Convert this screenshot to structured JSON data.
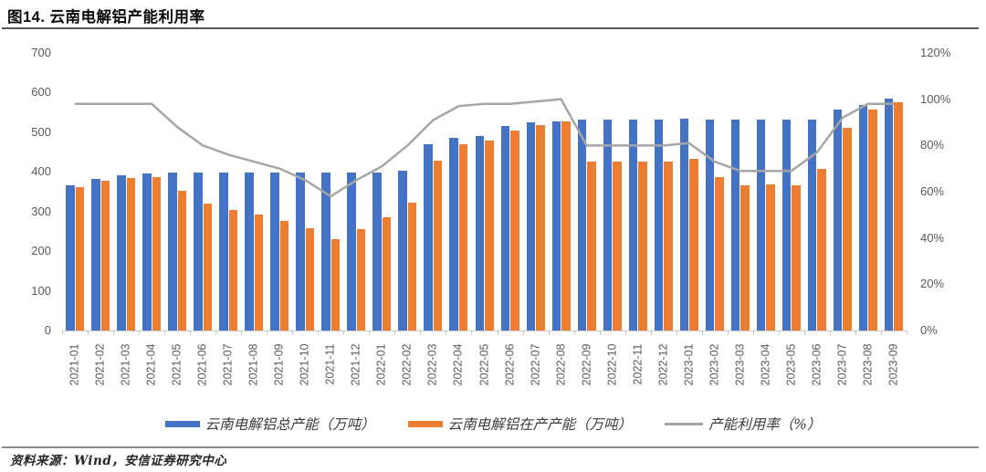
{
  "figure": {
    "title": "图14. 云南电解铝产能利用率",
    "source_note": "资料来源：Wind，安信证券研究中心"
  },
  "chart_data": {
    "type": "combo",
    "categories": [
      "2021-01",
      "2021-02",
      "2021-03",
      "2021-04",
      "2021-05",
      "2021-06",
      "2021-07",
      "2021-08",
      "2021-09",
      "2021-10",
      "2021-11",
      "2021-12",
      "2022-01",
      "2022-02",
      "2022-03",
      "2022-04",
      "2022-05",
      "2022-06",
      "2022-07",
      "2022-08",
      "2022-09",
      "2022-10",
      "2022-11",
      "2022-12",
      "2023-01",
      "2023-02",
      "2023-03",
      "2023-04",
      "2023-05",
      "2023-06",
      "2023-07",
      "2023-08",
      "2023-09"
    ],
    "series": [
      {
        "name": "云南电解铝总产能（万吨）",
        "type": "bar",
        "axis": "left",
        "color": "#4472C4",
        "values": [
          366,
          383,
          391,
          396,
          399,
          399,
          399,
          399,
          399,
          399,
          399,
          399,
          399,
          404,
          469,
          485,
          491,
          515,
          526,
          528,
          533,
          533,
          533,
          533,
          534,
          533,
          533,
          533,
          533,
          533,
          557,
          568,
          584
        ]
      },
      {
        "name": "云南电解铝在产产能（万吨）",
        "type": "bar",
        "axis": "left",
        "color": "#ED7D31",
        "values": [
          361,
          378,
          385,
          387,
          352,
          319,
          304,
          292,
          276,
          257,
          231,
          255,
          285,
          323,
          428,
          470,
          479,
          505,
          519,
          527,
          427,
          427,
          425,
          427,
          433,
          386,
          367,
          368,
          366,
          408,
          511,
          557,
          575
        ]
      },
      {
        "name": "产能利用率（%）",
        "type": "line",
        "axis": "right",
        "color": "#A6A6A6",
        "values": [
          98,
          98,
          98,
          98,
          88,
          80,
          76,
          73,
          70,
          65,
          58,
          65,
          71,
          80,
          91,
          97,
          98,
          98,
          99,
          100,
          80,
          80,
          80,
          80,
          81,
          73,
          69,
          69,
          69,
          77,
          92,
          98,
          98
        ]
      }
    ],
    "left_axis": {
      "min": 0,
      "max": 700,
      "step": 100,
      "ticks": [
        "0",
        "100",
        "200",
        "300",
        "400",
        "500",
        "600",
        "700"
      ]
    },
    "right_axis": {
      "min": 0,
      "max": 120,
      "step": 20,
      "ticks": [
        "0%",
        "20%",
        "40%",
        "60%",
        "80%",
        "100%",
        "120%"
      ]
    },
    "grid": false,
    "legend_position": "bottom",
    "axis_label_color": "#595959",
    "axis_line_color": "#C9C9C9"
  }
}
